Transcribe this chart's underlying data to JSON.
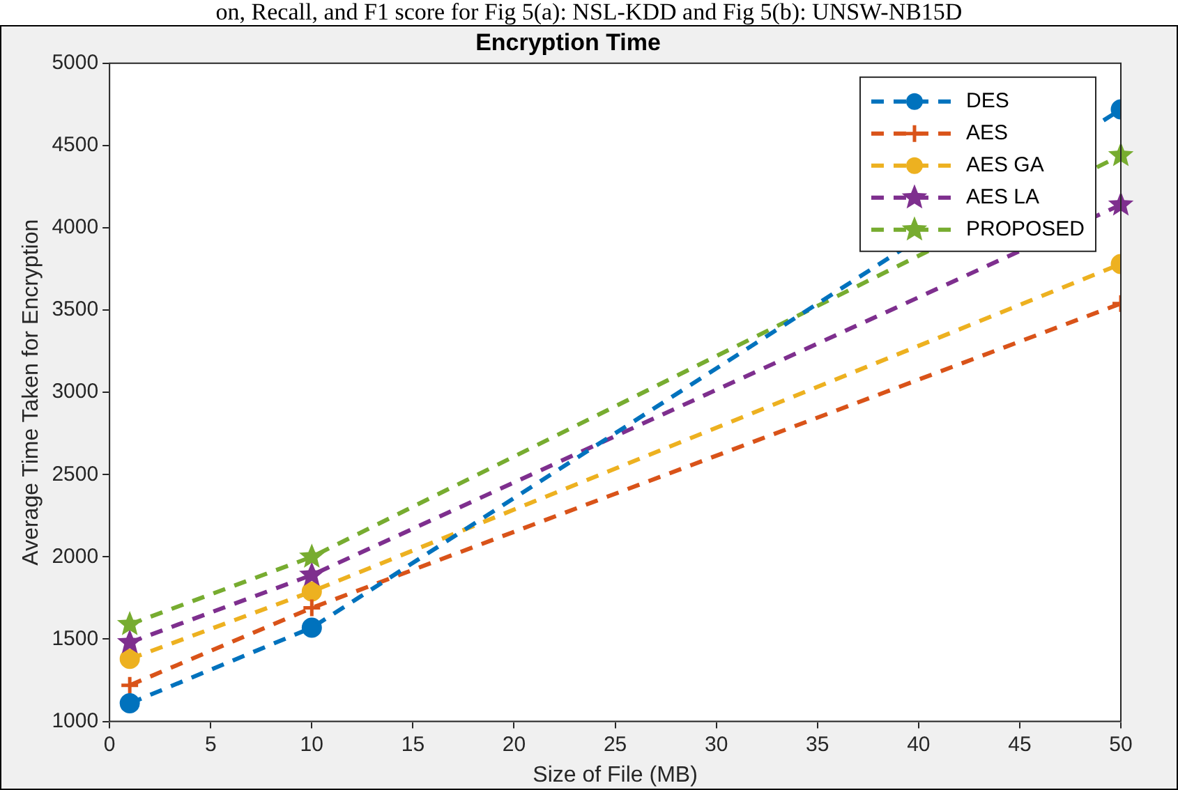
{
  "chart_data": {
    "type": "line",
    "title": "Encryption Time",
    "xlabel": "Size of File (MB)",
    "ylabel": "Average Time Taken for Encryption",
    "annotations": [
      "on, Recall, and F1 score for Fig 5(a): NSL-KDD and Fig 5(b): UNSW-NB15D"
    ],
    "x": [
      1,
      10,
      50
    ],
    "series": [
      {
        "name": "DES",
        "color": "#0072bd",
        "values": [
          1110,
          1570,
          4720
        ],
        "marker": "circle"
      },
      {
        "name": "AES",
        "color": "#d95319",
        "values": [
          1220,
          1690,
          3540
        ],
        "marker": "cross"
      },
      {
        "name": "AES GA",
        "color": "#edb120",
        "values": [
          1380,
          1790,
          3780
        ],
        "marker": "circle"
      },
      {
        "name": "AES LA",
        "color": "#7e2f8e",
        "values": [
          1480,
          1890,
          4140
        ],
        "marker": "star"
      },
      {
        "name": "PROPOSED",
        "color": "#77ac30",
        "values": [
          1590,
          2000,
          4440
        ],
        "marker": "star"
      }
    ],
    "xlim": [
      0,
      50
    ],
    "xticks": [
      0,
      5,
      10,
      15,
      20,
      25,
      30,
      35,
      40,
      45,
      50
    ],
    "ylim": [
      1000,
      5000
    ],
    "yticks": [
      1000,
      1500,
      2000,
      2500,
      3000,
      3500,
      4000,
      4500,
      5000
    ],
    "grid": false,
    "legend": "top right",
    "line_style": "dashed"
  }
}
